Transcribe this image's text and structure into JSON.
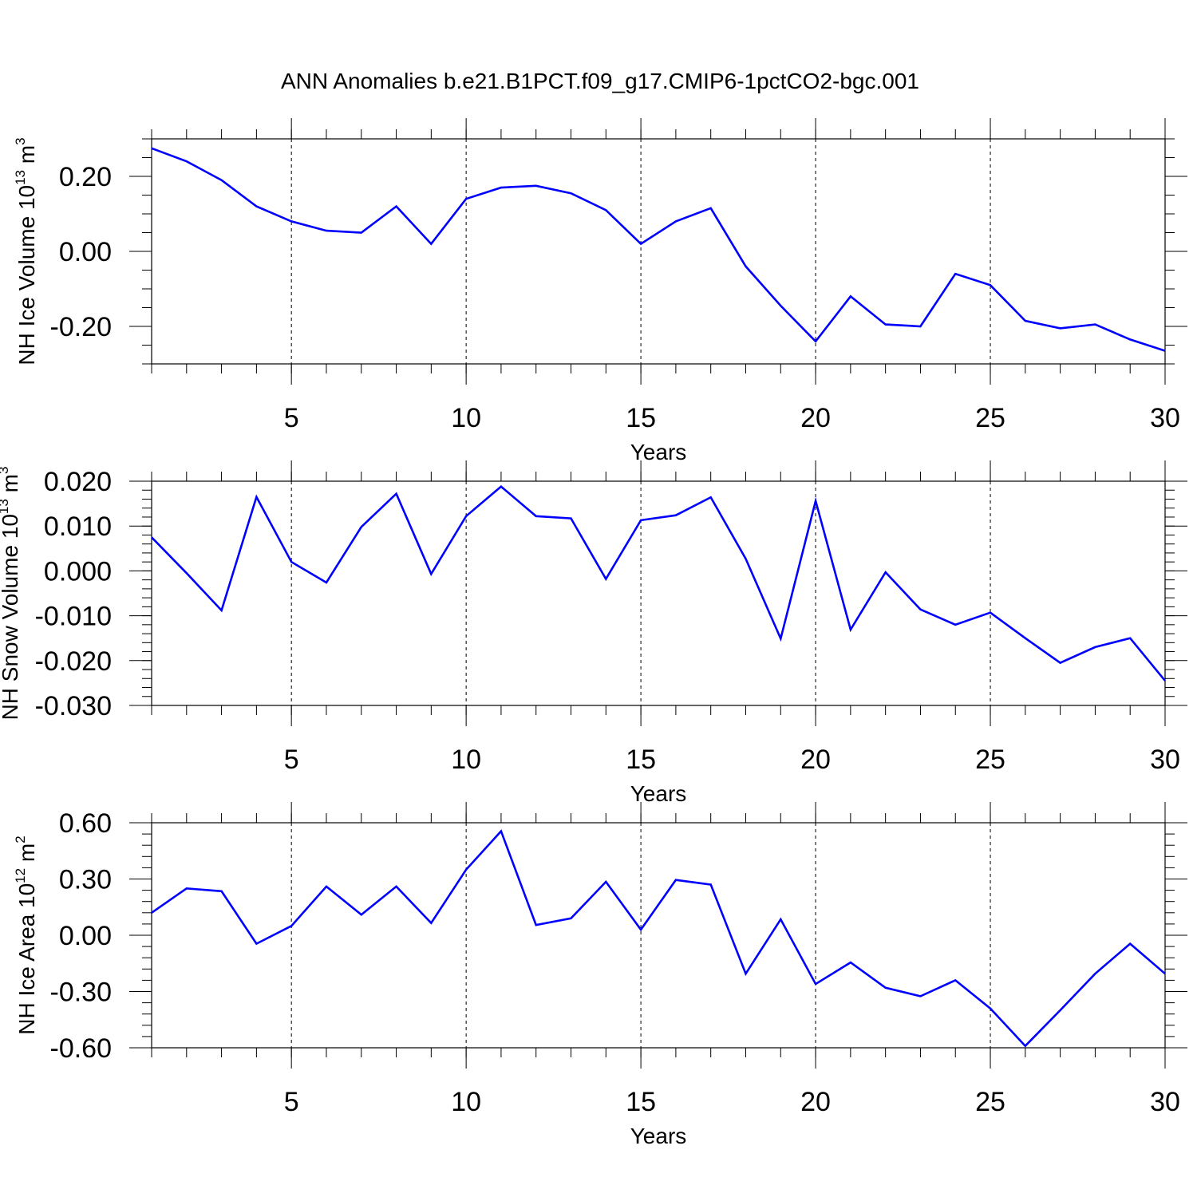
{
  "title": "ANN Anomalies b.e21.B1PCT.f09_g17.CMIP6-1pctCO2-bgc.001",
  "colors": {
    "line": "#0000ff",
    "axis": "#000000",
    "grid": "#000000"
  },
  "chart_data": [
    {
      "type": "line",
      "ylabel": {
        "text": "NH Ice Volume 10",
        "exponent": "13",
        "unit": " m",
        "unit_exponent": "3"
      },
      "xlabel": "Years",
      "xlim": [
        1,
        30
      ],
      "ylim": [
        -0.3,
        0.3
      ],
      "x_ticks": [
        "5",
        "10",
        "15",
        "20",
        "25",
        "30"
      ],
      "y_ticks": [
        "0.20",
        "0.00",
        "-0.20"
      ],
      "grid": "dashed vertical at x ticks",
      "series": [
        {
          "x": [
            1,
            2,
            3,
            4,
            5,
            6,
            7,
            8,
            9,
            10,
            11,
            12,
            13,
            14,
            15,
            16,
            17,
            18,
            19,
            20,
            21,
            22,
            23,
            24,
            25,
            26,
            27,
            28,
            29,
            30
          ],
          "values": [
            0.275,
            0.24,
            0.19,
            0.12,
            0.08,
            0.055,
            0.05,
            0.12,
            0.02,
            0.14,
            0.17,
            0.175,
            0.155,
            0.11,
            0.02,
            0.08,
            0.115,
            -0.04,
            -0.145,
            -0.24,
            -0.12,
            -0.195,
            -0.2,
            -0.06,
            -0.09,
            -0.185,
            -0.205,
            -0.195,
            -0.235,
            -0.265
          ]
        }
      ]
    },
    {
      "type": "line",
      "ylabel": {
        "text": "NH Snow Volume 10",
        "exponent": "13",
        "unit": " m",
        "unit_exponent": "3"
      },
      "xlabel": "Years",
      "xlim": [
        1,
        30
      ],
      "ylim": [
        -0.03,
        0.02
      ],
      "x_ticks": [
        "5",
        "10",
        "15",
        "20",
        "25",
        "30"
      ],
      "y_ticks": [
        "0.020",
        "0.010",
        "0.000",
        "-0.010",
        "-0.020",
        "-0.030"
      ],
      "grid": "dashed vertical at x ticks",
      "series": [
        {
          "x": [
            1,
            2,
            3,
            4,
            5,
            6,
            7,
            8,
            9,
            10,
            11,
            12,
            13,
            14,
            15,
            16,
            17,
            18,
            19,
            20,
            21,
            22,
            23,
            24,
            25,
            26,
            27,
            28,
            29,
            30
          ],
          "values": [
            0.0075,
            -0.0005,
            -0.0088,
            0.0165,
            0.002,
            -0.0026,
            0.0098,
            0.0172,
            -0.0007,
            0.0122,
            0.0188,
            0.0122,
            0.0117,
            -0.0018,
            0.0113,
            0.0124,
            0.0164,
            0.0027,
            -0.0151,
            0.0156,
            -0.0131,
            -0.0003,
            -0.0086,
            -0.012,
            -0.0093,
            -0.015,
            -0.0205,
            -0.017,
            -0.015,
            -0.0245
          ]
        }
      ]
    },
    {
      "type": "line",
      "ylabel": {
        "text": "NH Ice Area 10",
        "exponent": "12",
        "unit": " m",
        "unit_exponent": "2"
      },
      "xlabel": "Years",
      "xlim": [
        1,
        30
      ],
      "ylim": [
        -0.6,
        0.6
      ],
      "x_ticks": [
        "5",
        "10",
        "15",
        "20",
        "25",
        "30"
      ],
      "y_ticks": [
        "0.60",
        "0.30",
        "0.00",
        "-0.30",
        "-0.60"
      ],
      "grid": "dashed vertical at x ticks",
      "series": [
        {
          "x": [
            1,
            2,
            3,
            4,
            5,
            6,
            7,
            8,
            9,
            10,
            11,
            12,
            13,
            14,
            15,
            16,
            17,
            18,
            19,
            20,
            21,
            22,
            23,
            24,
            25,
            26,
            27,
            28,
            29,
            30
          ],
          "values": [
            0.12,
            0.25,
            0.235,
            -0.045,
            0.05,
            0.26,
            0.11,
            0.26,
            0.065,
            0.35,
            0.555,
            0.055,
            0.09,
            0.285,
            0.03,
            0.295,
            0.27,
            -0.205,
            0.085,
            -0.26,
            -0.145,
            -0.28,
            -0.325,
            -0.24,
            -0.39,
            -0.59,
            -0.4,
            -0.205,
            -0.045,
            -0.205
          ]
        }
      ]
    }
  ]
}
